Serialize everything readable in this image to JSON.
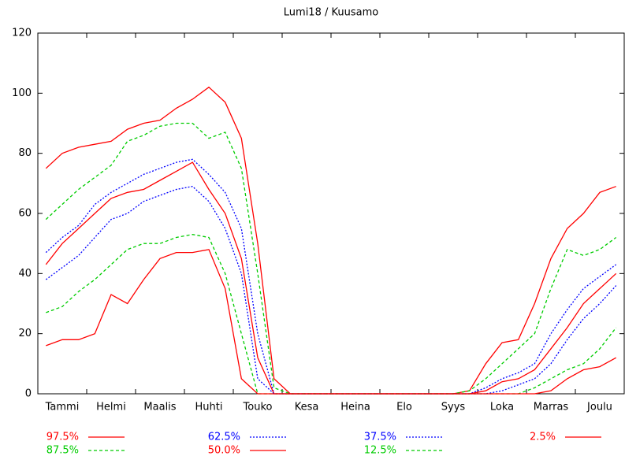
{
  "chart_data": {
    "type": "line",
    "title": "Lumi18 / Kuusamo",
    "categories": [
      null,
      "Tammi",
      null,
      null,
      "Helmi",
      null,
      null,
      "Maalis",
      null,
      null,
      "Huhti",
      null,
      null,
      "Touko",
      null,
      null,
      "Kesa",
      null,
      null,
      "Heina",
      null,
      null,
      "Elo",
      null,
      null,
      "Syys",
      null,
      null,
      "Loka",
      null,
      null,
      "Marras",
      null,
      null,
      "Joulu",
      null
    ],
    "ylim": [
      0,
      120
    ],
    "yticks": [
      0,
      20,
      40,
      60,
      80,
      100,
      120
    ],
    "series": [
      {
        "name": "97.5%",
        "color": "#ff0000",
        "dash": "solid",
        "values": [
          75,
          80,
          82,
          83,
          84,
          88,
          90,
          91,
          95,
          98,
          102,
          97,
          85,
          50,
          5,
          0,
          0,
          0,
          0,
          0,
          0,
          0,
          0,
          0,
          0,
          0,
          1,
          10,
          17,
          18,
          30,
          45,
          55,
          60,
          67,
          69
        ]
      },
      {
        "name": "87.5%",
        "color": "#00cc00",
        "dash": "dashed",
        "values": [
          58,
          63,
          68,
          72,
          76,
          84,
          86,
          89,
          90,
          90,
          85,
          87,
          75,
          40,
          2,
          0,
          0,
          0,
          0,
          0,
          0,
          0,
          0,
          0,
          0,
          0,
          1,
          5,
          10,
          15,
          20,
          35,
          48,
          46,
          48,
          52
        ]
      },
      {
        "name": "62.5%",
        "color": "#0000ff",
        "dash": "dotted",
        "values": [
          47,
          52,
          56,
          63,
          67,
          70,
          73,
          75,
          77,
          78,
          73,
          67,
          55,
          20,
          0,
          0,
          0,
          0,
          0,
          0,
          0,
          0,
          0,
          0,
          0,
          0,
          0,
          2,
          5,
          7,
          10,
          20,
          28,
          35,
          39,
          43
        ]
      },
      {
        "name": "50.0%",
        "color": "#ff0000",
        "dash": "solid",
        "values": [
          43,
          50,
          55,
          60,
          65,
          67,
          68,
          71,
          74,
          77,
          68,
          60,
          45,
          12,
          0,
          0,
          0,
          0,
          0,
          0,
          0,
          0,
          0,
          0,
          0,
          0,
          0,
          1,
          4,
          5,
          8,
          15,
          22,
          30,
          35,
          40
        ]
      },
      {
        "name": "37.5%",
        "color": "#0000ff",
        "dash": "dotted",
        "values": [
          38,
          42,
          46,
          52,
          58,
          60,
          64,
          66,
          68,
          69,
          64,
          55,
          40,
          5,
          0,
          0,
          0,
          0,
          0,
          0,
          0,
          0,
          0,
          0,
          0,
          0,
          0,
          0,
          1,
          3,
          5,
          10,
          18,
          25,
          30,
          36
        ]
      },
      {
        "name": "12.5%",
        "color": "#00cc00",
        "dash": "dashed",
        "values": [
          27,
          29,
          34,
          38,
          43,
          48,
          50,
          50,
          52,
          53,
          52,
          40,
          20,
          0,
          0,
          0,
          0,
          0,
          0,
          0,
          0,
          0,
          0,
          0,
          0,
          0,
          0,
          0,
          0,
          0,
          2,
          5,
          8,
          10,
          15,
          22
        ]
      },
      {
        "name": "2.5%",
        "color": "#ff0000",
        "dash": "solid",
        "values": [
          16,
          18,
          18,
          20,
          33,
          30,
          38,
          45,
          47,
          47,
          48,
          35,
          5,
          0,
          0,
          0,
          0,
          0,
          0,
          0,
          0,
          0,
          0,
          0,
          0,
          0,
          0,
          0,
          0,
          0,
          0,
          1,
          5,
          8,
          9,
          12
        ]
      }
    ]
  }
}
